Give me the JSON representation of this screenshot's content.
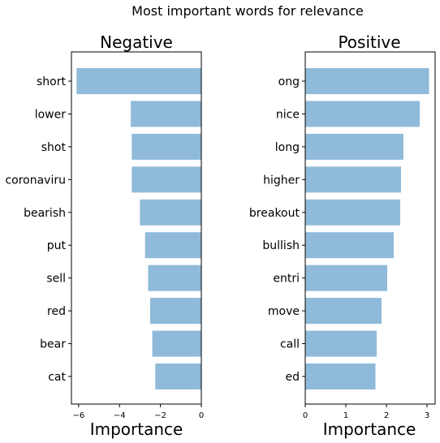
{
  "figure": {
    "suptitle": "Most important words for relevance"
  },
  "colors": {
    "bar": "#8fbad9",
    "axis": "#000000"
  },
  "chart_data": [
    {
      "type": "bar",
      "orientation": "horizontal",
      "title": "Negative",
      "xlabel": "Importance",
      "ylabel": "",
      "categories": [
        "short",
        "lower",
        "shot",
        "coronaviru",
        "bearish",
        "put",
        "sell",
        "red",
        "bear",
        "cat"
      ],
      "values": [
        -6.1,
        -3.45,
        -3.4,
        -3.4,
        -3.0,
        -2.75,
        -2.6,
        -2.5,
        -2.4,
        -2.25
      ],
      "xlim": [
        -6.35,
        0
      ],
      "xticks": [
        -6,
        -4,
        -2,
        0
      ],
      "xtick_labels": [
        "−6",
        "−4",
        "−2",
        "0"
      ],
      "grid": false
    },
    {
      "type": "bar",
      "orientation": "horizontal",
      "title": "Positive",
      "xlabel": "Importance",
      "ylabel": "",
      "categories": [
        "ong",
        "nice",
        "long",
        "higher",
        "breakout",
        "bullish",
        "entri",
        "move",
        "call",
        "ed"
      ],
      "values": [
        3.05,
        2.82,
        2.42,
        2.36,
        2.34,
        2.18,
        2.02,
        1.88,
        1.76,
        1.73
      ],
      "xlim": [
        0,
        3.2
      ],
      "xticks": [
        0,
        1,
        2,
        3
      ],
      "xtick_labels": [
        "0",
        "1",
        "2",
        "3"
      ],
      "grid": false
    }
  ]
}
